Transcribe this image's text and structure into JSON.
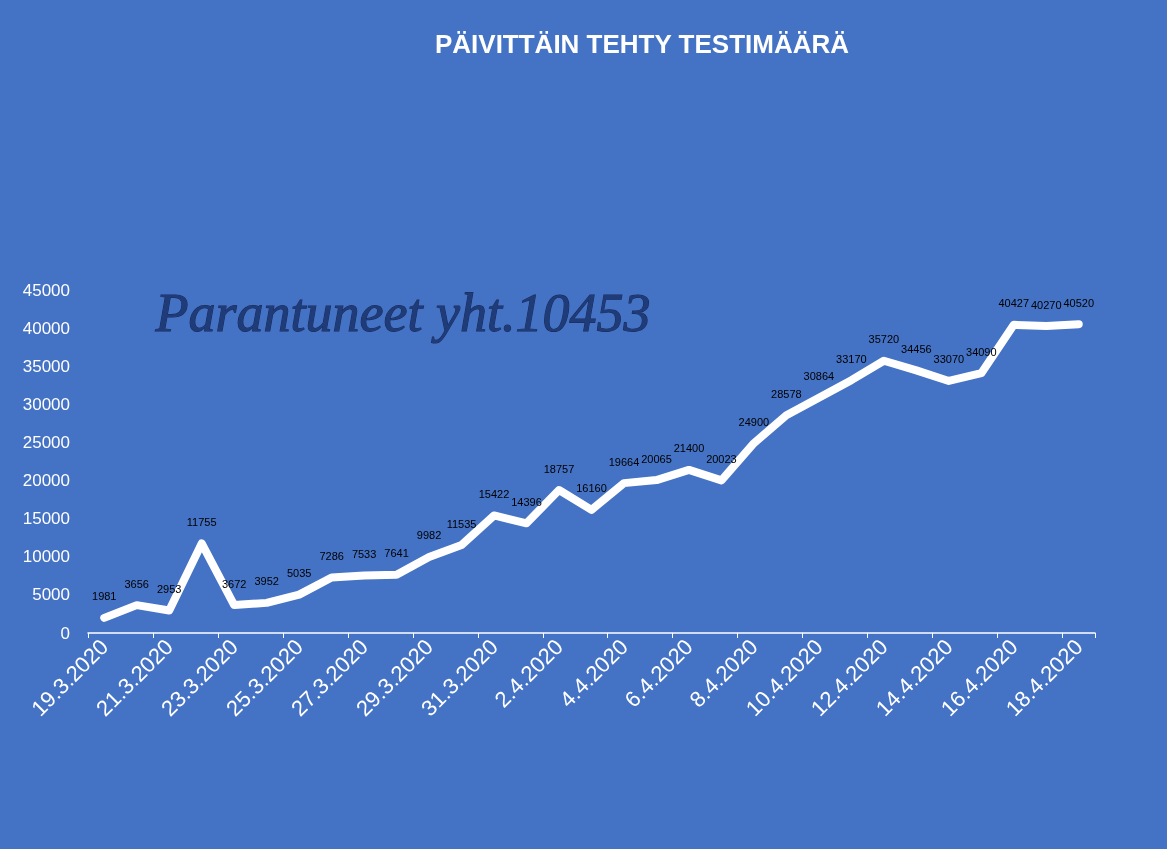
{
  "chart_data": {
    "type": "line",
    "title": "PÄIVITTÄIN TEHTY TESTIMÄÄRÄ",
    "annotations": [
      "Parantuneet yht.10453"
    ],
    "categories": [
      "19.3.2020",
      null,
      "21.3.2020",
      null,
      "23.3.2020",
      null,
      "25.3.2020",
      null,
      "27.3.2020",
      null,
      "29.3.2020",
      null,
      "31.3.2020",
      null,
      "2.4.2020",
      null,
      "4.4.2020",
      null,
      "6.4.2020",
      null,
      "8.4.2020",
      null,
      "10.4.2020",
      null,
      "12.4.2020",
      null,
      "14.4.2020",
      null,
      "16.4.2020",
      null,
      "18.4.2020"
    ],
    "series": [
      {
        "color": "#ffffff",
        "values": [
          1981,
          3656,
          2953,
          11755,
          3672,
          3952,
          5035,
          7286,
          7533,
          7641,
          9982,
          11535,
          15422,
          14396,
          18757,
          16160,
          19664,
          20065,
          21400,
          20023,
          24900,
          28578,
          30864,
          33170,
          35720,
          34456,
          33070,
          34090,
          40427,
          40270,
          40520
        ]
      }
    ],
    "ylim": [
      0,
      45000
    ],
    "yticks": [
      0,
      5000,
      10000,
      15000,
      20000,
      25000,
      30000,
      35000,
      40000,
      45000
    ],
    "marker": "none",
    "line_style": "solid",
    "data_labels": true
  }
}
